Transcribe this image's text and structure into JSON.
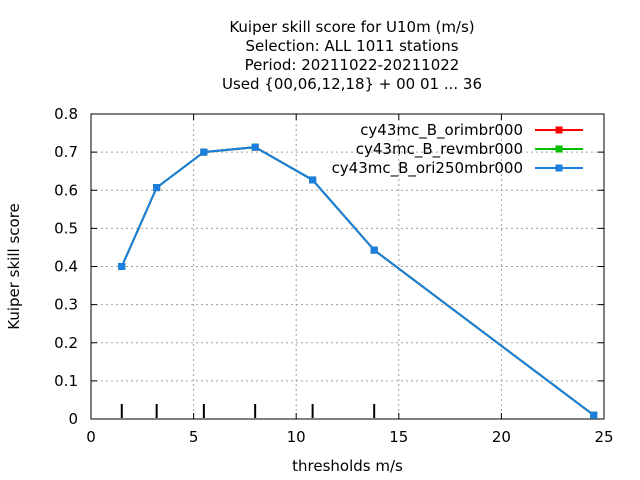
{
  "chart_data": {
    "type": "line",
    "title": [
      "Kuiper skill score  for U10m (m/s)",
      "Selection: ALL   1011 stations",
      "Period: 20211022-20211022",
      "Used {00,06,12,18} + 00 01 ... 36"
    ],
    "xlabel": "thresholds m/s",
    "ylabel": "Kuiper skill score",
    "xlim": [
      0,
      25
    ],
    "ylim": [
      0,
      0.8
    ],
    "xticks": [
      "0",
      "5",
      "10",
      "15",
      "20",
      "25"
    ],
    "yticks": [
      "0",
      "0.1",
      "0.2",
      "0.3",
      "0.4",
      "0.5",
      "0.6",
      "0.7",
      "0.8"
    ],
    "grid": true,
    "legend_position": "top-right",
    "threshold_marks": [
      1.5,
      3.2,
      5.5,
      8.0,
      10.8,
      13.8
    ],
    "series": [
      {
        "name": "cy43mc_B_orimbr000",
        "color": "#ff0000",
        "x": [
          1.5,
          3.2,
          5.5,
          8.0,
          10.8,
          13.8,
          24.5
        ],
        "y": [
          0.4,
          0.607,
          0.7,
          0.713,
          0.627,
          0.443,
          0.01
        ]
      },
      {
        "name": "cy43mc_B_revmbr000",
        "color": "#00c000",
        "x": [
          1.5,
          3.2,
          5.5,
          8.0,
          10.8,
          13.8,
          24.5
        ],
        "y": [
          0.4,
          0.607,
          0.7,
          0.713,
          0.627,
          0.443,
          0.01
        ]
      },
      {
        "name": "cy43mc_B_ori250mbr000",
        "color": "#1a7fe0",
        "x": [
          1.5,
          3.2,
          5.5,
          8.0,
          10.8,
          13.8,
          24.5
        ],
        "y": [
          0.4,
          0.607,
          0.7,
          0.713,
          0.627,
          0.443,
          0.01
        ]
      }
    ]
  }
}
